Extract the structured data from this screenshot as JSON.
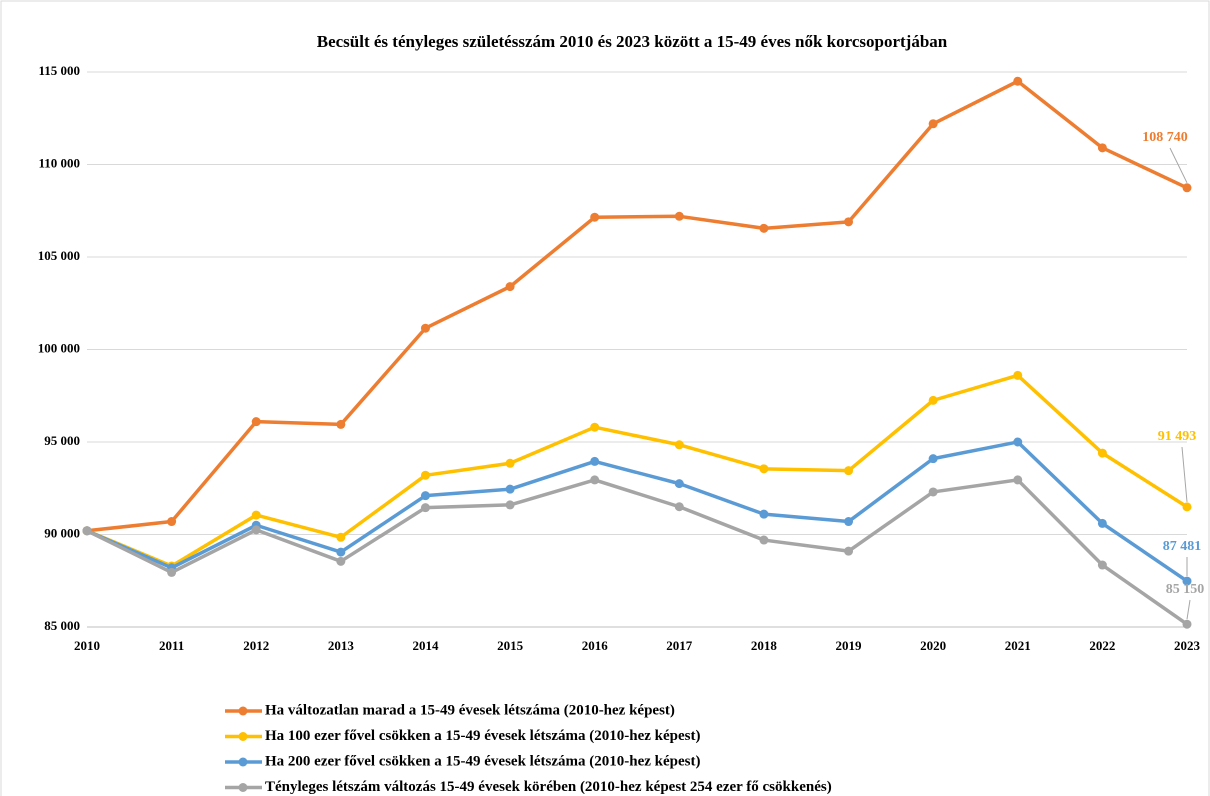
{
  "chart_data": {
    "type": "line",
    "title": "Becsült és tényleges születésszám 2010 és 2023 között a 15-49 éves nők korcsoportjában",
    "categories": [
      "2010",
      "2011",
      "2012",
      "2013",
      "2014",
      "2015",
      "2016",
      "2017",
      "2018",
      "2019",
      "2020",
      "2021",
      "2022",
      "2023"
    ],
    "ylim": [
      85000,
      115000
    ],
    "yticks": [
      {
        "value": 85000,
        "label": "85 000"
      },
      {
        "value": 90000,
        "label": "90 000"
      },
      {
        "value": 95000,
        "label": "95 000"
      },
      {
        "value": 100000,
        "label": "100 000"
      },
      {
        "value": 105000,
        "label": "105 000"
      },
      {
        "value": 110000,
        "label": "110 000"
      },
      {
        "value": 115000,
        "label": "115 000"
      }
    ],
    "grid": true,
    "legend": "bottom",
    "series": [
      {
        "name": "Ha változatlan marad a 15-49 évesek létszáma (2010-hez képest)",
        "color": "#ed7d31",
        "values": [
          90200,
          90700,
          96100,
          95950,
          101150,
          103400,
          107150,
          107200,
          106550,
          106900,
          112200,
          114500,
          110900,
          108740
        ],
        "value_labels": [
          null,
          null,
          null,
          null,
          null,
          null,
          null,
          null,
          null,
          null,
          null,
          null,
          null,
          "108 740"
        ]
      },
      {
        "name": "Ha 100 ezer fővel csökken a 15-49 évesek létszáma (2010-hez képest)",
        "color": "#ffc000",
        "values": [
          90200,
          88300,
          91050,
          89850,
          93200,
          93850,
          95800,
          94850,
          93550,
          93450,
          97250,
          98600,
          94400,
          91493
        ],
        "value_labels": [
          null,
          null,
          null,
          null,
          null,
          null,
          null,
          null,
          null,
          null,
          null,
          null,
          null,
          "91 493"
        ]
      },
      {
        "name": "Ha 200 ezer fővel csökken a 15-49 évesek létszáma (2010-hez képest)",
        "color": "#5b9bd5",
        "values": [
          90200,
          88200,
          90500,
          89050,
          92100,
          92450,
          93950,
          92750,
          91100,
          90700,
          94100,
          95000,
          90600,
          87481
        ],
        "value_labels": [
          null,
          null,
          null,
          null,
          null,
          null,
          null,
          null,
          null,
          null,
          null,
          null,
          null,
          "87 481"
        ]
      },
      {
        "name": "Tényleges létszám változás 15-49 évesek körében (2010-hez képest 254 ezer fő csökkenés)",
        "color": "#a5a5a5",
        "values": [
          90200,
          87950,
          90250,
          88550,
          91450,
          91600,
          92950,
          91500,
          89700,
          89100,
          92300,
          92950,
          88350,
          85150
        ],
        "value_labels": [
          null,
          null,
          null,
          null,
          null,
          null,
          null,
          null,
          null,
          null,
          null,
          null,
          null,
          "85 150"
        ]
      }
    ]
  }
}
